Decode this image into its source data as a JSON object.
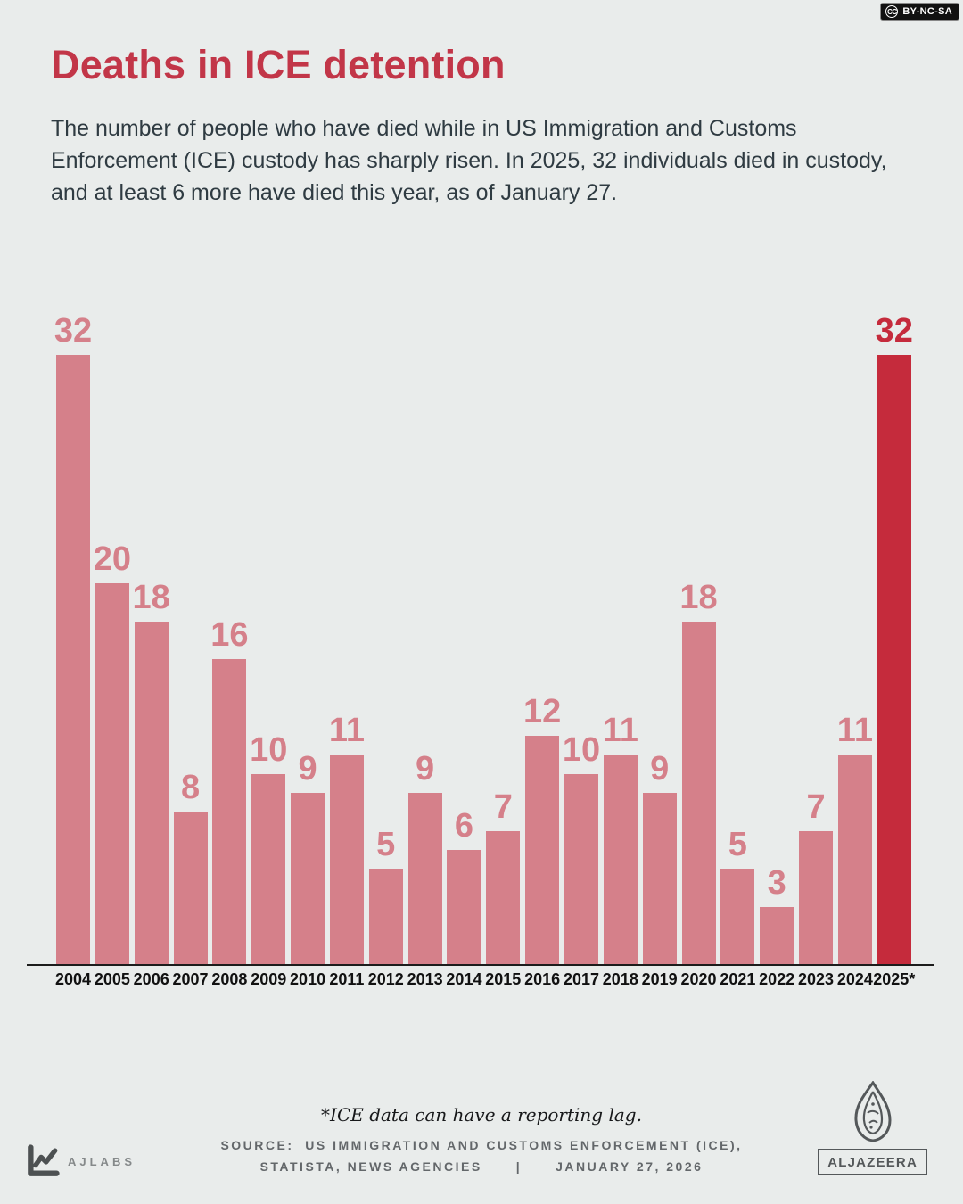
{
  "license_badge": {
    "icon_text": "CC",
    "label": "BY-NC-SA"
  },
  "header": {
    "title": "Deaths in ICE detention",
    "subtitle": "The number of people who have died while in US Immigration and Customs Enforcement (ICE) custody has sharply risen. In 2025, 32 individuals died in custody, and at least 6 more have died this year, as of January 27."
  },
  "chart_data": {
    "type": "bar",
    "categories": [
      "2004",
      "2005",
      "2006",
      "2007",
      "2008",
      "2009",
      "2010",
      "2011",
      "2012",
      "2013",
      "2014",
      "2015",
      "2016",
      "2017",
      "2018",
      "2019",
      "2020",
      "2021",
      "2022",
      "2023",
      "2024",
      "2025*"
    ],
    "values": [
      32,
      20,
      18,
      8,
      16,
      10,
      9,
      11,
      5,
      9,
      6,
      7,
      12,
      10,
      11,
      9,
      18,
      5,
      3,
      7,
      11,
      32
    ],
    "title": "Deaths in ICE detention",
    "xlabel": "",
    "ylabel": "",
    "ylim": [
      0,
      32
    ],
    "grid": false,
    "legend": "none",
    "value_labels": true,
    "bar_color": "#d5808a",
    "highlight_color": "#c52b3c",
    "highlight_index": 21
  },
  "footer": {
    "footnote": "*ICE data can have a reporting lag.",
    "source_prefix": "SOURCE:",
    "source_line1": "US IMMIGRATION AND CUSTOMS ENFORCEMENT (ICE),",
    "source_line2": "STATISTA, NEWS AGENCIES",
    "separator": "|",
    "date": "JANUARY 27, 2026",
    "ajlabs_label": "AJLABS",
    "aljazeera_label": "ALJAZEERA"
  }
}
